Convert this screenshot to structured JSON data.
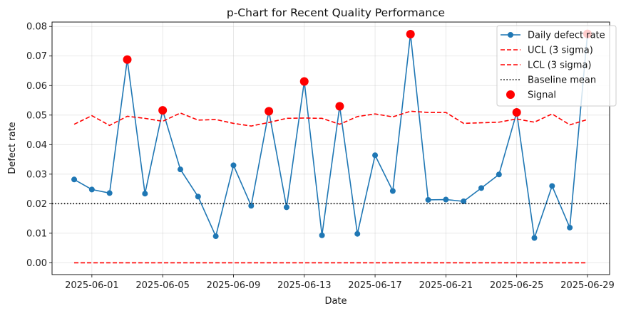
{
  "chart_data": {
    "type": "line",
    "title": "p-Chart for Recent Quality Performance",
    "xlabel": "Date",
    "ylabel": "Defect rate",
    "x": [
      "2025-05-31",
      "2025-06-01",
      "2025-06-02",
      "2025-06-03",
      "2025-06-04",
      "2025-06-05",
      "2025-06-06",
      "2025-06-07",
      "2025-06-08",
      "2025-06-09",
      "2025-06-10",
      "2025-06-11",
      "2025-06-12",
      "2025-06-13",
      "2025-06-14",
      "2025-06-15",
      "2025-06-16",
      "2025-06-17",
      "2025-06-18",
      "2025-06-19",
      "2025-06-20",
      "2025-06-21",
      "2025-06-22",
      "2025-06-23",
      "2025-06-24",
      "2025-06-25",
      "2025-06-26",
      "2025-06-27",
      "2025-06-28",
      "2025-06-29"
    ],
    "xlim": [
      "2025-05-29T18:00",
      "2025-06-30T06:00"
    ],
    "xticks": [
      "2025-06-01",
      "2025-06-05",
      "2025-06-09",
      "2025-06-13",
      "2025-06-17",
      "2025-06-21",
      "2025-06-25",
      "2025-06-29"
    ],
    "ylim": [
      -0.004,
      0.0815
    ],
    "yticks": [
      "0.00",
      "0.01",
      "0.02",
      "0.03",
      "0.04",
      "0.05",
      "0.06",
      "0.07",
      "0.08"
    ],
    "grid": true,
    "legend_position": "top-right",
    "series": [
      {
        "name": "Daily defect rate",
        "style": "line-marker",
        "color": "#1f77b4",
        "values": [
          0.0282,
          0.0248,
          0.0236,
          0.0688,
          0.0234,
          0.0516,
          0.0316,
          0.0224,
          0.009,
          0.033,
          0.0193,
          0.0513,
          0.0188,
          0.0614,
          0.0093,
          0.053,
          0.0098,
          0.0364,
          0.0243,
          0.0774,
          0.0213,
          0.0214,
          0.0208,
          0.0253,
          0.0299,
          0.0509,
          0.0084,
          0.026,
          0.0119,
          0.0775
        ]
      },
      {
        "name": "UCL (3 sigma)",
        "style": "dashed",
        "color": "#ff0000",
        "values": [
          0.0469,
          0.0498,
          0.0465,
          0.0496,
          0.0489,
          0.0479,
          0.0507,
          0.0483,
          0.0485,
          0.0472,
          0.0463,
          0.0475,
          0.0489,
          0.049,
          0.0489,
          0.0469,
          0.0495,
          0.0504,
          0.0494,
          0.0513,
          0.0509,
          0.0509,
          0.0472,
          0.0474,
          0.0476,
          0.0487,
          0.0476,
          0.0504,
          0.0467,
          0.0485
        ]
      },
      {
        "name": "LCL (3 sigma)",
        "style": "dashed",
        "color": "#ff0000",
        "values": [
          0,
          0,
          0,
          0,
          0,
          0,
          0,
          0,
          0,
          0,
          0,
          0,
          0,
          0,
          0,
          0,
          0,
          0,
          0,
          0,
          0,
          0,
          0,
          0,
          0,
          0,
          0,
          0,
          0,
          0
        ]
      },
      {
        "name": "Baseline mean",
        "style": "dotted",
        "color": "#000000",
        "value": 0.02
      },
      {
        "name": "Signal",
        "style": "scatter",
        "color": "#ff0000",
        "x": [
          "2025-06-03",
          "2025-06-05",
          "2025-06-11",
          "2025-06-13",
          "2025-06-15",
          "2025-06-19",
          "2025-06-25",
          "2025-06-29"
        ],
        "values": [
          0.0688,
          0.0516,
          0.0513,
          0.0614,
          0.053,
          0.0774,
          0.0509,
          0.0775
        ]
      }
    ]
  }
}
